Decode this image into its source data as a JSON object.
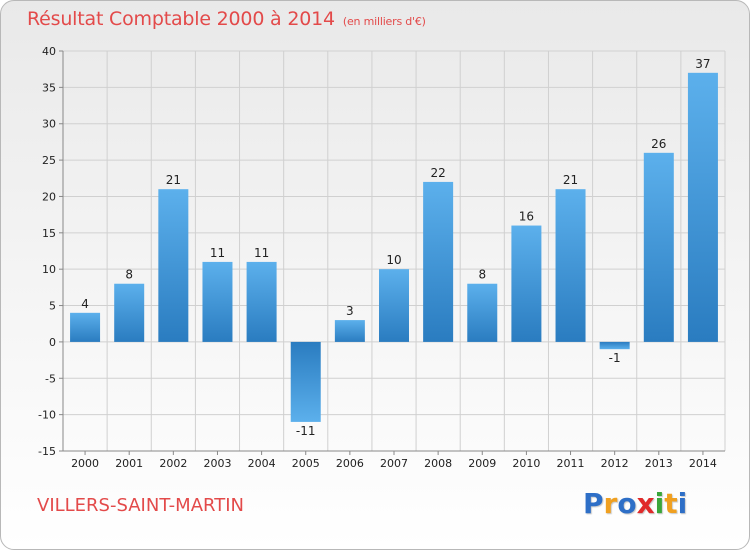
{
  "chart_data": {
    "type": "bar",
    "title": "Résultat Comptable 2000 à 2014",
    "subtitle": "(en milliers d'€)",
    "categories": [
      "2000",
      "2001",
      "2002",
      "2003",
      "2004",
      "2005",
      "2006",
      "2007",
      "2008",
      "2009",
      "2010",
      "2011",
      "2012",
      "2013",
      "2014"
    ],
    "values": [
      4,
      8,
      21,
      11,
      11,
      -11,
      3,
      10,
      22,
      8,
      16,
      21,
      -1,
      26,
      37
    ],
    "value_labels": [
      "4",
      "8",
      "21",
      "11",
      "11",
      "-11",
      "3",
      "10",
      "22",
      "8",
      "16",
      "21",
      "-1",
      "26",
      "37"
    ],
    "xlabel": "",
    "ylabel": "",
    "ylim": [
      -15,
      40
    ],
    "yticks": [
      -15,
      -10,
      -5,
      0,
      5,
      10,
      15,
      20,
      25,
      30,
      35,
      40
    ],
    "ytick_labels": [
      "-15",
      "-10",
      "-5",
      "0",
      "5",
      "10",
      "15",
      "20",
      "25",
      "30",
      "35",
      "40"
    ],
    "grid": true,
    "bar_color": "#3a8fd6"
  },
  "footer": {
    "place": "VILLERS-SAINT-MARTIN",
    "logo_text": "Proxiti",
    "logo_letters": [
      "P",
      "r",
      "o",
      "x",
      "i",
      "t",
      "i"
    ],
    "logo_colors": [
      "#2e6fc7",
      "#f0a020",
      "#2e6fc7",
      "#e02a2a",
      "#3aa63a",
      "#f0a020",
      "#2e6fc7"
    ]
  },
  "colors": {
    "accent": "#e34a4a"
  }
}
